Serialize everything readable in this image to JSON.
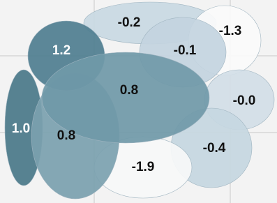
{
  "regions": [
    {
      "label": "-0.2",
      "color": "#c9d9e3"
    },
    {
      "label": "-1.3",
      "color": "#fbfbfb"
    },
    {
      "label": "-0.1",
      "color": "#c3d4df"
    },
    {
      "label": "-0.0",
      "color": "#d2dee7"
    },
    {
      "label": "-0.4",
      "color": "#c6d7e1"
    },
    {
      "label": "-1.9",
      "color": "#f7f8f8"
    },
    {
      "label": "1.0",
      "color": "#4a7889"
    },
    {
      "label": "0.8",
      "color": "#7ba1af"
    },
    {
      "label": "1.2",
      "color": "#4f7e90"
    },
    {
      "label": "0.8",
      "color": "#7099a8"
    }
  ]
}
